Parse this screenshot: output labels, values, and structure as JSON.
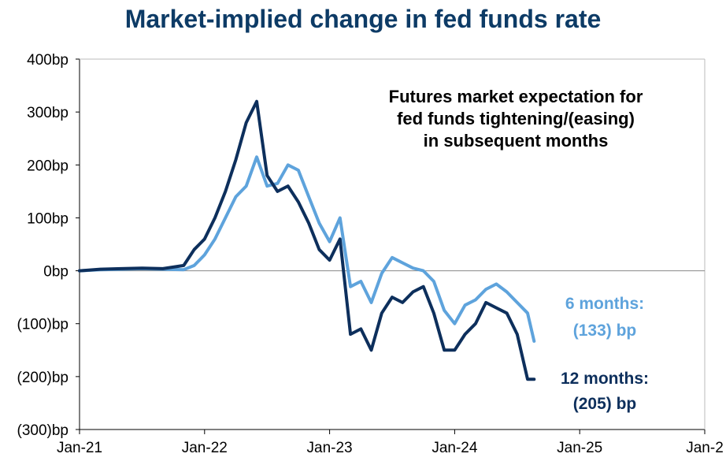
{
  "title": "Market-implied change in fed funds rate",
  "chart_data": {
    "type": "line",
    "title": "Market-implied change in fed funds rate",
    "annotation": [
      "Futures market expectation for",
      "fed funds tightening/(easing)",
      "in subsequent months"
    ],
    "y_ticks": [
      {
        "value": 400,
        "label": "400bp"
      },
      {
        "value": 300,
        "label": "300bp"
      },
      {
        "value": 200,
        "label": "200bp"
      },
      {
        "value": 100,
        "label": "100bp"
      },
      {
        "value": 0,
        "label": "0bp"
      },
      {
        "value": -100,
        "label": "(100)bp"
      },
      {
        "value": -200,
        "label": "(200)bp"
      },
      {
        "value": -300,
        "label": "(300)bp"
      }
    ],
    "x_ticks": [
      {
        "value": "2021-01",
        "label": "Jan-21"
      },
      {
        "value": "2022-01",
        "label": "Jan-22"
      },
      {
        "value": "2023-01",
        "label": "Jan-23"
      },
      {
        "value": "2024-01",
        "label": "Jan-24"
      },
      {
        "value": "2025-01",
        "label": "Jan-25"
      },
      {
        "value": "2026-01",
        "label": "Jan-2"
      }
    ],
    "ylim": [
      -300,
      400
    ],
    "xlim": [
      "2021-01",
      "2026-01"
    ],
    "grid": false,
    "zero_line": true,
    "series": [
      {
        "name": "6 months",
        "end_label": [
          "6 months:",
          "(133) bp"
        ],
        "color": "#5ea3dc",
        "points": [
          [
            "2021-01",
            0
          ],
          [
            "2021-03",
            2
          ],
          [
            "2021-05",
            3
          ],
          [
            "2021-07",
            4
          ],
          [
            "2021-09",
            3
          ],
          [
            "2021-11",
            2
          ],
          [
            "2021-12",
            10
          ],
          [
            "2022-01",
            30
          ],
          [
            "2022-02",
            60
          ],
          [
            "2022-03",
            100
          ],
          [
            "2022-04",
            140
          ],
          [
            "2022-05",
            160
          ],
          [
            "2022-06",
            215
          ],
          [
            "2022-07",
            160
          ],
          [
            "2022-08",
            165
          ],
          [
            "2022-09",
            200
          ],
          [
            "2022-10",
            190
          ],
          [
            "2022-11",
            140
          ],
          [
            "2022-12",
            90
          ],
          [
            "2023-01",
            55
          ],
          [
            "2023-02",
            100
          ],
          [
            "2023-03",
            -30
          ],
          [
            "2023-04",
            -20
          ],
          [
            "2023-05",
            -60
          ],
          [
            "2023-06",
            -5
          ],
          [
            "2023-07",
            25
          ],
          [
            "2023-08",
            15
          ],
          [
            "2023-09",
            5
          ],
          [
            "2023-10",
            0
          ],
          [
            "2023-11",
            -20
          ],
          [
            "2023-12",
            -75
          ],
          [
            "2024-01",
            -100
          ],
          [
            "2024-02",
            -65
          ],
          [
            "2024-03",
            -55
          ],
          [
            "2024-04",
            -35
          ],
          [
            "2024-05",
            -25
          ],
          [
            "2024-06",
            -40
          ],
          [
            "2024-07",
            -60
          ],
          [
            "2024-08",
            -80
          ],
          [
            "2024-08-20",
            -133
          ]
        ]
      },
      {
        "name": "12 months",
        "end_label": [
          "12 months:",
          "(205) bp"
        ],
        "color": "#0d2f5c",
        "points": [
          [
            "2021-01",
            0
          ],
          [
            "2021-03",
            3
          ],
          [
            "2021-05",
            4
          ],
          [
            "2021-07",
            5
          ],
          [
            "2021-09",
            4
          ],
          [
            "2021-11",
            10
          ],
          [
            "2021-12",
            40
          ],
          [
            "2022-01",
            60
          ],
          [
            "2022-02",
            100
          ],
          [
            "2022-03",
            150
          ],
          [
            "2022-04",
            210
          ],
          [
            "2022-05",
            280
          ],
          [
            "2022-06",
            320
          ],
          [
            "2022-07",
            180
          ],
          [
            "2022-08",
            150
          ],
          [
            "2022-09",
            160
          ],
          [
            "2022-10",
            130
          ],
          [
            "2022-11",
            90
          ],
          [
            "2022-12",
            40
          ],
          [
            "2023-01",
            20
          ],
          [
            "2023-02",
            60
          ],
          [
            "2023-03",
            -120
          ],
          [
            "2023-04",
            -110
          ],
          [
            "2023-05",
            -150
          ],
          [
            "2023-06",
            -80
          ],
          [
            "2023-07",
            -50
          ],
          [
            "2023-08",
            -60
          ],
          [
            "2023-09",
            -40
          ],
          [
            "2023-10",
            -30
          ],
          [
            "2023-11",
            -80
          ],
          [
            "2023-12",
            -150
          ],
          [
            "2024-01",
            -150
          ],
          [
            "2024-02",
            -120
          ],
          [
            "2024-03",
            -100
          ],
          [
            "2024-04",
            -60
          ],
          [
            "2024-05",
            -70
          ],
          [
            "2024-06",
            -80
          ],
          [
            "2024-07",
            -120
          ],
          [
            "2024-08",
            -205
          ],
          [
            "2024-08-20",
            -205
          ]
        ]
      }
    ]
  }
}
